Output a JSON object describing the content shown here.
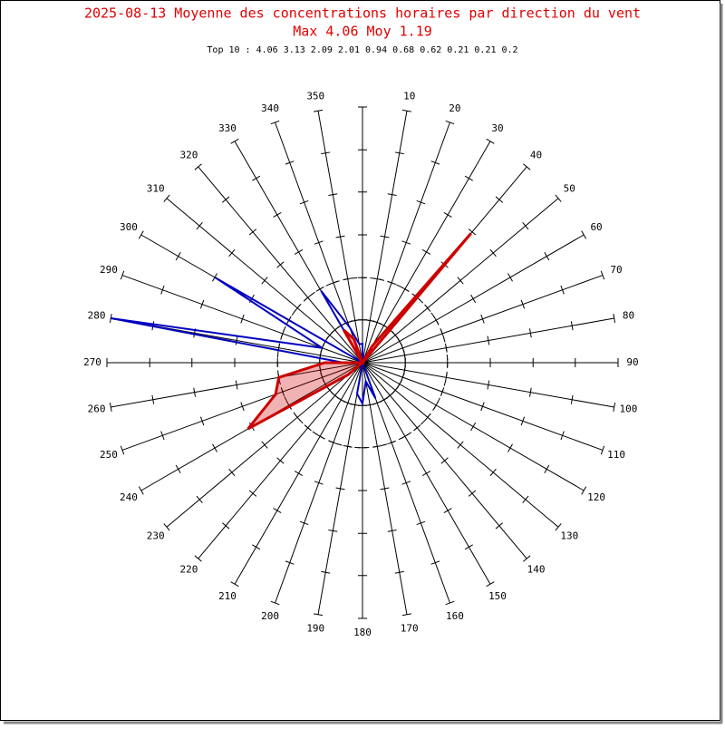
{
  "chart_data": {
    "type": "polar",
    "title": "2025-08-13 Moyenne des concentrations horaires par direction du vent",
    "subtitle": "Max 4.06 Moy 1.19",
    "note": "Top 10 : 4.06 3.13 2.09 2.01 0.94 0.68 0.62 0.21 0.21 0.2",
    "categories": [
      null,
      "10",
      "20",
      "30",
      "40",
      "50",
      "60",
      "70",
      "80",
      "90",
      "100",
      "110",
      "120",
      "130",
      "140",
      "150",
      "160",
      "170",
      "180",
      "190",
      "200",
      "210",
      "220",
      "230",
      "240",
      "250",
      "260",
      "270",
      "280",
      "290",
      "300",
      "310",
      "320",
      "330",
      "340",
      "350"
    ],
    "rlim": [
      0,
      4.06
    ],
    "rticks": [
      0.68,
      1.35,
      2.03,
      2.71,
      3.38,
      4.06
    ],
    "series": [
      {
        "color": "#0000c0",
        "fill": false,
        "values": [
          0.3,
          0,
          0,
          0,
          0,
          0,
          0,
          0,
          0,
          0,
          0,
          0,
          0,
          0,
          0,
          0,
          0.6,
          0.3,
          0.65,
          0.5,
          0,
          0,
          0,
          0,
          0,
          0,
          0,
          0.3,
          4.06,
          0.68,
          2.7,
          0,
          0,
          1.32,
          0.6,
          0.3
        ]
      },
      {
        "color": "#cc0000",
        "fill": true,
        "values": [
          0,
          0,
          0,
          0.3,
          2.68,
          0,
          0,
          0,
          0,
          0,
          0,
          0,
          0,
          0,
          0,
          0,
          0,
          0,
          0,
          0,
          0,
          0,
          0,
          0.3,
          2.1,
          1.47,
          1.35,
          0.6,
          0,
          0,
          0,
          0,
          0,
          0.6,
          0.4,
          0
        ]
      }
    ]
  }
}
